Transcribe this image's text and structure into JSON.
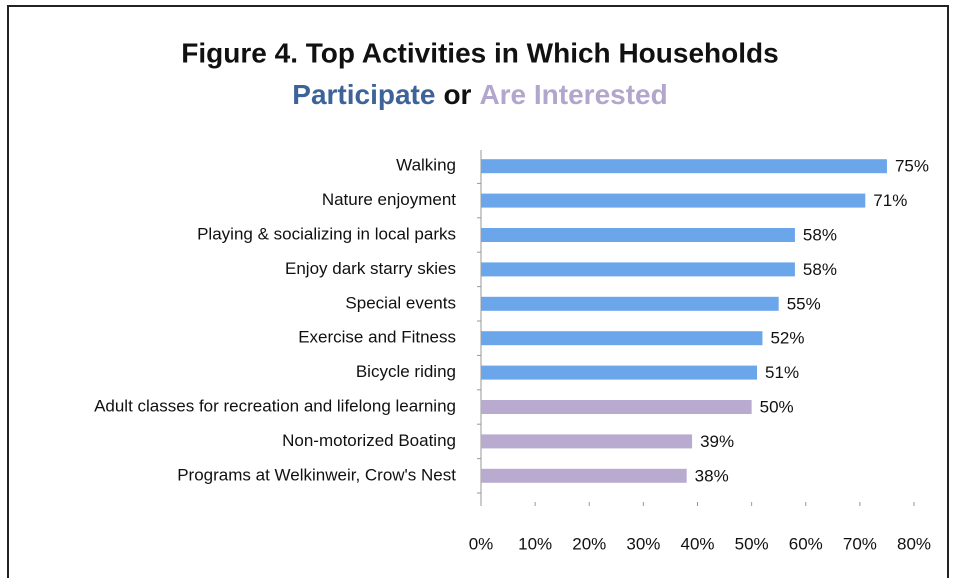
{
  "chart_data": {
    "type": "bar",
    "orientation": "horizontal",
    "title": "Figure 4. Top Activities in Which Households",
    "subtitle_parts": [
      {
        "text": "Participate",
        "color": "#3d6399"
      },
      {
        "text": "or",
        "color": "#111111"
      },
      {
        "text": "Are Interested",
        "color": "#b3a6cc"
      }
    ],
    "categories": [
      "Walking",
      "Nature enjoyment",
      "Playing & socializing in local parks",
      "Enjoy dark starry skies",
      "Special events",
      "Exercise and Fitness",
      "Bicycle riding",
      "Adult classes for recreation and lifelong learning",
      "Non-motorized Boating",
      "Programs at Welkinweir, Crow's Nest"
    ],
    "values": [
      75,
      71,
      58,
      58,
      55,
      52,
      51,
      50,
      39,
      38
    ],
    "value_labels": [
      "75%",
      "71%",
      "58%",
      "58%",
      "55%",
      "52%",
      "51%",
      "50%",
      "39%",
      "38%"
    ],
    "colors": [
      "#6ba6ea",
      "#6ba6ea",
      "#6ba6ea",
      "#6ba6ea",
      "#6ba6ea",
      "#6ba6ea",
      "#6ba6ea",
      "#b9abd0",
      "#b9abd0",
      "#b9abd0"
    ],
    "xlim": [
      0,
      80
    ],
    "xticks": [
      {
        "value": 0,
        "label": "0%"
      },
      {
        "value": 10,
        "label": "10%"
      },
      {
        "value": 20,
        "label": "20%"
      },
      {
        "value": 30,
        "label": "30%"
      },
      {
        "value": 40,
        "label": "40%"
      },
      {
        "value": 50,
        "label": "50%"
      },
      {
        "value": 60,
        "label": "60%"
      },
      {
        "value": 70,
        "label": "70%"
      },
      {
        "value": 80,
        "label": "80%"
      }
    ],
    "grid": false
  }
}
